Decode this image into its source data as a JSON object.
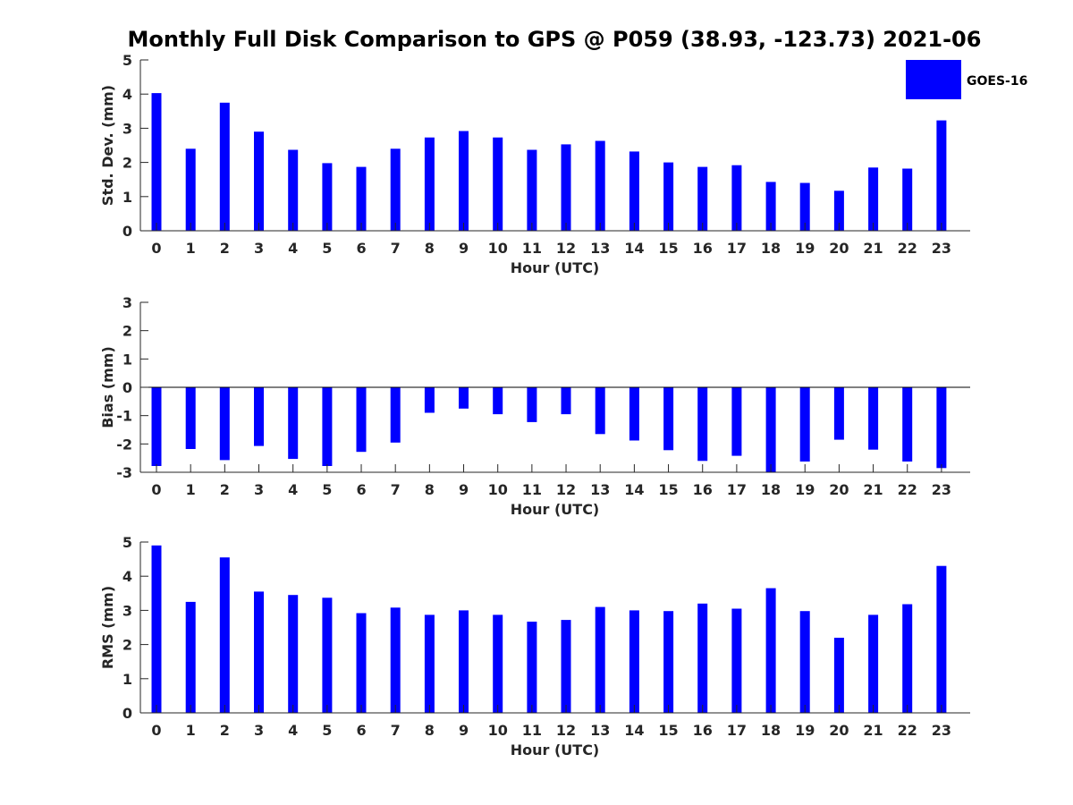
{
  "title": "Monthly Full Disk Comparison to GPS @ P059 (38.93, -123.73) 2021-06",
  "legend": {
    "label": "GOES-16",
    "color": "#0000ff"
  },
  "chart_data": [
    {
      "type": "bar",
      "xlabel": "Hour (UTC)",
      "ylabel": "Std. Dev. (mm)",
      "ylim": [
        0,
        5
      ],
      "yticks": [
        0,
        1,
        2,
        3,
        4,
        5
      ],
      "categories": [
        "0",
        "1",
        "2",
        "3",
        "4",
        "5",
        "6",
        "7",
        "8",
        "9",
        "10",
        "11",
        "12",
        "13",
        "14",
        "15",
        "16",
        "17",
        "18",
        "19",
        "20",
        "21",
        "22",
        "23"
      ],
      "series": [
        {
          "name": "GOES-16",
          "color": "#0000ff",
          "values": [
            4.03,
            2.4,
            3.75,
            2.9,
            2.37,
            1.98,
            1.87,
            2.4,
            2.73,
            2.92,
            2.73,
            2.37,
            2.53,
            2.63,
            2.32,
            2.0,
            1.87,
            1.92,
            1.43,
            1.4,
            1.17,
            1.85,
            1.82,
            3.23
          ]
        }
      ],
      "grid": false
    },
    {
      "type": "bar",
      "xlabel": "Hour (UTC)",
      "ylabel": "Bias (mm)",
      "ylim": [
        -3,
        3
      ],
      "yticks": [
        -3,
        -2,
        -1,
        0,
        1,
        2,
        3
      ],
      "categories": [
        "0",
        "1",
        "2",
        "3",
        "4",
        "5",
        "6",
        "7",
        "8",
        "9",
        "10",
        "11",
        "12",
        "13",
        "14",
        "15",
        "16",
        "17",
        "18",
        "19",
        "20",
        "21",
        "22",
        "23"
      ],
      "series": [
        {
          "name": "GOES-16",
          "color": "#0000ff",
          "values": [
            -2.78,
            -2.18,
            -2.57,
            -2.07,
            -2.53,
            -2.78,
            -2.28,
            -1.95,
            -0.9,
            -0.75,
            -0.95,
            -1.23,
            -0.95,
            -1.65,
            -1.88,
            -2.22,
            -2.6,
            -2.42,
            -3.0,
            -2.62,
            -1.85,
            -2.2,
            -2.62,
            -2.85
          ]
        }
      ],
      "grid": false
    },
    {
      "type": "bar",
      "xlabel": "Hour (UTC)",
      "ylabel": "RMS (mm)",
      "ylim": [
        0,
        5
      ],
      "yticks": [
        0,
        1,
        2,
        3,
        4,
        5
      ],
      "categories": [
        "0",
        "1",
        "2",
        "3",
        "4",
        "5",
        "6",
        "7",
        "8",
        "9",
        "10",
        "11",
        "12",
        "13",
        "14",
        "15",
        "16",
        "17",
        "18",
        "19",
        "20",
        "21",
        "22",
        "23"
      ],
      "series": [
        {
          "name": "GOES-16",
          "color": "#0000ff",
          "values": [
            4.9,
            3.25,
            4.55,
            3.55,
            3.45,
            3.37,
            2.92,
            3.08,
            2.87,
            3.0,
            2.87,
            2.67,
            2.72,
            3.1,
            3.0,
            2.98,
            3.2,
            3.05,
            3.65,
            2.98,
            2.2,
            2.87,
            3.18,
            4.3
          ]
        }
      ],
      "grid": false
    }
  ]
}
